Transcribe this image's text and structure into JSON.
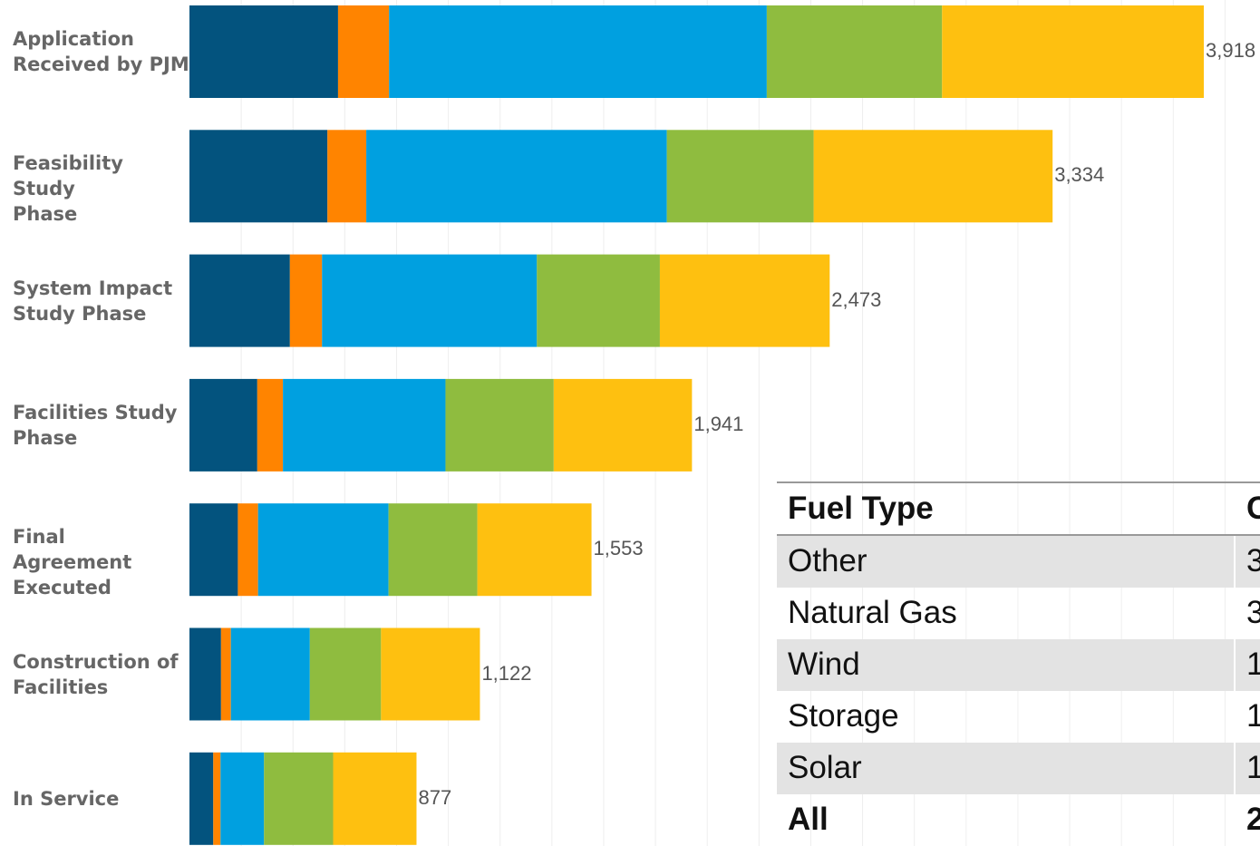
{
  "chart_data": {
    "type": "bar",
    "orientation": "horizontal",
    "stacked": true,
    "categories": [
      "Application\nReceived by PJM",
      "Feasibility Study\nPhase",
      "System Impact\nStudy Phase",
      "Facilities Study\nPhase",
      "Final Agreement\nExecuted",
      "Construction of\nFacilities",
      "In Service"
    ],
    "totals": [
      3918,
      3334,
      2473,
      1941,
      1553,
      1122,
      877
    ],
    "total_labels": [
      "3,918",
      "3,334",
      "2,473",
      "1,941",
      "1,553",
      "1,122",
      "877"
    ],
    "series": [
      {
        "color": "#03537e",
        "values": [
          574,
          533,
          388,
          262,
          187,
          122,
          92
        ]
      },
      {
        "color": "#ff8400",
        "values": [
          197,
          150,
          124,
          99,
          78,
          38,
          28
        ]
      },
      {
        "color": "#00a0e0",
        "values": [
          1459,
          1161,
          830,
          628,
          504,
          305,
          168
        ]
      },
      {
        "color": "#8fbc3f",
        "values": [
          677,
          567,
          475,
          418,
          343,
          275,
          267
        ]
      },
      {
        "color": "#fec010",
        "values": [
          1011,
          923,
          656,
          534,
          441,
          382,
          322
        ]
      }
    ],
    "xlim": [
      0,
      3918
    ],
    "grid": true
  },
  "table": {
    "header": {
      "fuel": "Fuel Type",
      "count": "C"
    },
    "rows": [
      {
        "fuel": "Other",
        "count": "3",
        "shaded": true
      },
      {
        "fuel": "Natural Gas",
        "count": "3",
        "shaded": false
      },
      {
        "fuel": "Wind",
        "count": "1",
        "shaded": true
      },
      {
        "fuel": "Storage",
        "count": "1",
        "shaded": false
      },
      {
        "fuel": "Solar",
        "count": "1",
        "shaded": true
      }
    ],
    "total": {
      "fuel": "All",
      "count": "2"
    }
  }
}
